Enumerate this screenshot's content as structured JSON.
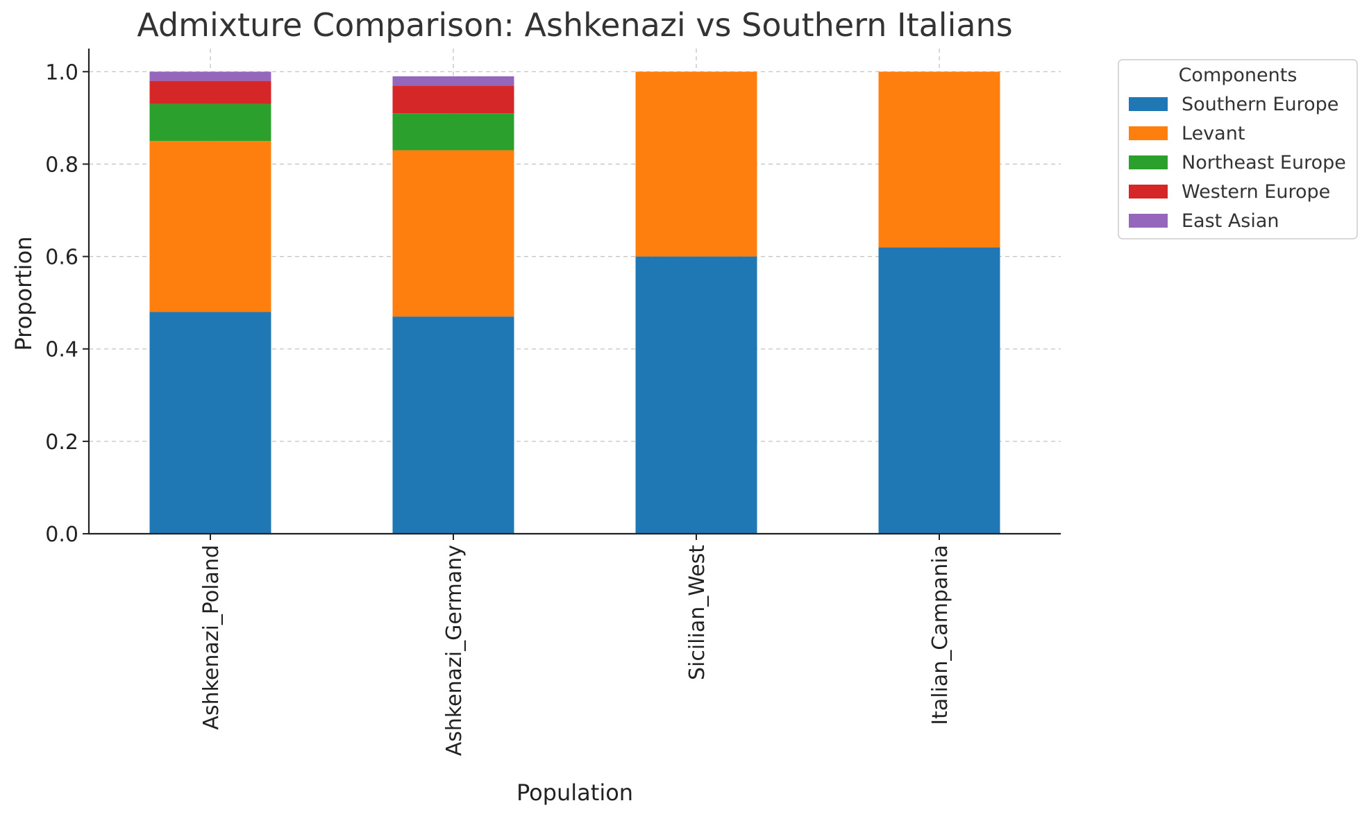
{
  "chart_data": {
    "type": "bar",
    "stacked": true,
    "title": "Admixture Comparison: Ashkenazi vs Southern Italians",
    "xlabel": "Population",
    "ylabel": "Proportion",
    "ylim": [
      0,
      1.05
    ],
    "yticks": [
      "0.0",
      "0.2",
      "0.4",
      "0.6",
      "0.8",
      "1.0"
    ],
    "grid": true,
    "categories": [
      "Ashkenazi_Poland",
      "Ashkenazi_Germany",
      "Sicilian_West",
      "Italian_Campania"
    ],
    "legend": {
      "title": "Components",
      "placement": "outside-top-right"
    },
    "series": [
      {
        "name": "Southern Europe",
        "color": "#1f77b4",
        "values": [
          0.48,
          0.47,
          0.6,
          0.62
        ]
      },
      {
        "name": "Levant",
        "color": "#ff7f0e",
        "values": [
          0.37,
          0.36,
          0.4,
          0.38
        ]
      },
      {
        "name": "Northeast Europe",
        "color": "#2ca02c",
        "values": [
          0.08,
          0.08,
          0.0,
          0.0
        ]
      },
      {
        "name": "Western Europe",
        "color": "#d62728",
        "values": [
          0.05,
          0.06,
          0.0,
          0.0
        ]
      },
      {
        "name": "East Asian",
        "color": "#9467bd",
        "values": [
          0.02,
          0.02,
          0.0,
          0.0
        ]
      }
    ]
  }
}
